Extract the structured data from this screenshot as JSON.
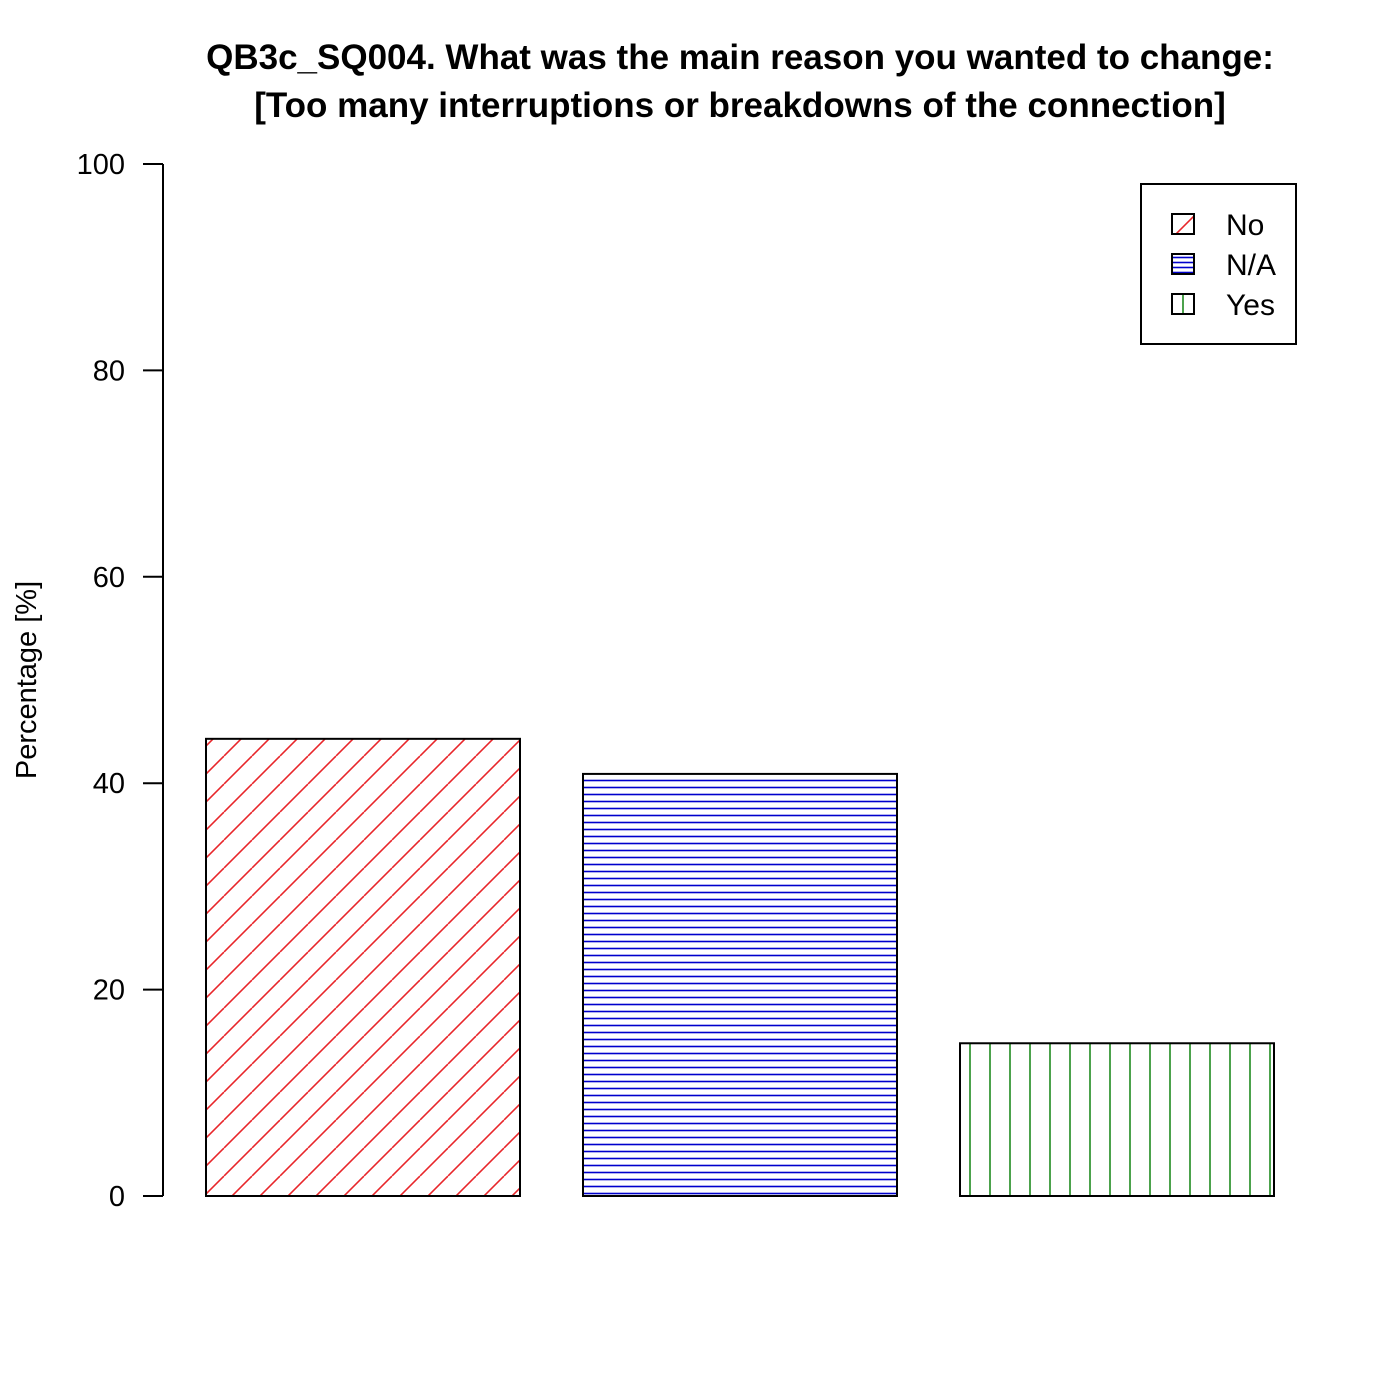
{
  "colors": {
    "no": "#e8262b",
    "na": "#0000cc",
    "yes": "#1f8a1f",
    "axis": "#000000"
  },
  "chart_data": {
    "type": "bar",
    "title": "QB3c_SQ004. What was the main reason you wanted to change:",
    "subtitle": "[Too many interruptions or breakdowns of the connection]",
    "xlabel": "",
    "ylabel": "Percentage [%]",
    "ylim": [
      0,
      100
    ],
    "yticks": [
      0,
      20,
      40,
      60,
      80,
      100
    ],
    "categories": [
      "No",
      "N/A",
      "Yes"
    ],
    "values": [
      44.3,
      40.9,
      14.8
    ],
    "legend_position": "top-right",
    "legend": [
      "No",
      "N/A",
      "Yes"
    ],
    "patterns": [
      "diagonal",
      "horizontal",
      "vertical"
    ],
    "grid": false
  }
}
